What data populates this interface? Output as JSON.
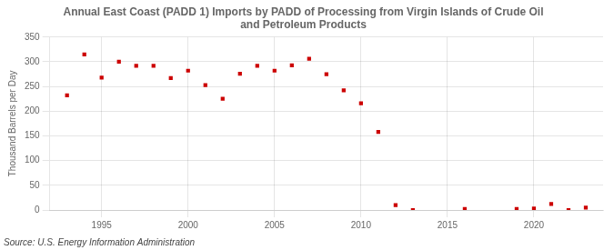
{
  "chart_data": {
    "type": "scatter",
    "title": "Annual East Coast (PADD 1) Imports by PADD of Processing from Virgin Islands of Crude Oil\nand Petroleum Products",
    "ylabel": "Thousand Barrels per Day",
    "annotation": "Source: U.S. Energy Information Administration",
    "x": [
      1993,
      1994,
      1995,
      1996,
      1997,
      1998,
      1999,
      2000,
      2001,
      2002,
      2003,
      2004,
      2005,
      2006,
      2007,
      2008,
      2009,
      2010,
      2011,
      2012,
      2013,
      2016,
      2019,
      2020,
      2021,
      2022,
      2023
    ],
    "values": [
      232,
      315,
      268,
      300,
      292,
      292,
      267,
      282,
      253,
      225,
      276,
      292,
      282,
      293,
      306,
      275,
      242,
      216,
      158,
      10,
      0,
      2,
      2,
      3,
      12,
      0,
      5
    ],
    "color": "#cc0000",
    "marker": "square",
    "xlim": [
      1992,
      2024
    ],
    "xticks": [
      1995,
      2000,
      2005,
      2010,
      2015,
      2020
    ],
    "ylim": [
      0,
      350
    ],
    "yticks": [
      0,
      50,
      100,
      150,
      200,
      250,
      300,
      350
    ],
    "grid": true
  }
}
